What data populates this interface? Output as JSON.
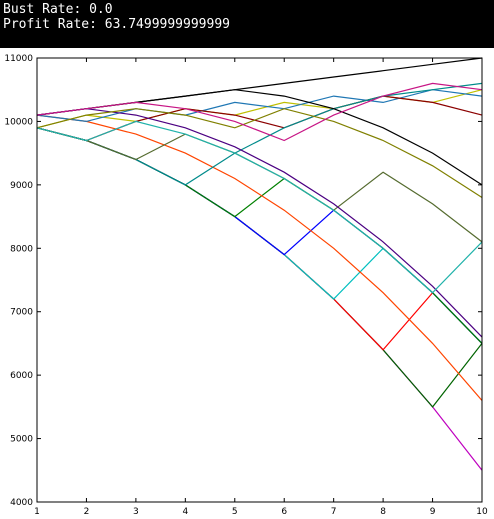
{
  "terminal": {
    "lines": [
      "Bust Rate: 0.0",
      "Profit Rate: 63.7499999999999"
    ]
  },
  "chart_data": {
    "type": "line",
    "x": [
      1,
      2,
      3,
      4,
      5,
      6,
      7,
      8,
      9,
      10
    ],
    "xlim": [
      1,
      10
    ],
    "xticks": [
      1,
      2,
      3,
      4,
      5,
      6,
      7,
      8,
      9,
      10
    ],
    "ylim": [
      4000,
      11000
    ],
    "yticks": [
      4000,
      5000,
      6000,
      7000,
      8000,
      9000,
      10000,
      11000
    ],
    "series": [
      {
        "color": "#bf00bf",
        "values": [
          9900,
          9700,
          9400,
          9000,
          8500,
          7900,
          7200,
          6400,
          5500,
          4500
        ]
      },
      {
        "color": "#000000",
        "values": [
          10100,
          10200,
          10300,
          10400,
          10500,
          10600,
          10700,
          10800,
          10900,
          11000
        ]
      },
      {
        "color": "#006400",
        "values": [
          9900,
          9700,
          9400,
          9000,
          8500,
          7900,
          7200,
          6400,
          5500,
          6500
        ]
      },
      {
        "color": "#ff0000",
        "values": [
          9900,
          9700,
          9400,
          9000,
          8500,
          7900,
          7200,
          6400,
          7300,
          6500
        ]
      },
      {
        "color": "#00bfbf",
        "values": [
          9900,
          9700,
          9400,
          9000,
          8500,
          7900,
          7200,
          8000,
          7300,
          6500
        ]
      },
      {
        "color": "#0000ff",
        "values": [
          9900,
          9700,
          9400,
          9000,
          8500,
          7900,
          8600,
          8000,
          7300,
          6500
        ]
      },
      {
        "color": "#008000",
        "values": [
          9900,
          9700,
          9400,
          9000,
          8500,
          9100,
          8600,
          8000,
          7300,
          6500
        ]
      },
      {
        "color": "#ff4500",
        "values": [
          10100,
          10000,
          9800,
          9500,
          9100,
          8600,
          8000,
          7300,
          6500,
          5600
        ]
      },
      {
        "color": "#bfbf00",
        "values": [
          9900,
          10100,
          10000,
          10200,
          10100,
          10300,
          10200,
          10400,
          10300,
          10500
        ]
      },
      {
        "color": "#1f77b4",
        "values": [
          10100,
          10000,
          10200,
          10100,
          10300,
          10200,
          10400,
          10300,
          10500,
          10400
        ]
      },
      {
        "color": "#8b0000",
        "values": [
          9900,
          9700,
          10000,
          10200,
          10100,
          9900,
          10200,
          10400,
          10300,
          10100
        ]
      },
      {
        "color": "#008b8b",
        "values": [
          9900,
          9700,
          9400,
          9000,
          9500,
          9900,
          10200,
          10400,
          10500,
          10600
        ]
      },
      {
        "color": "#000000",
        "values": [
          10100,
          10200,
          10300,
          10400,
          10500,
          10400,
          10200,
          9900,
          9500,
          9000
        ]
      },
      {
        "color": "#556b2f",
        "values": [
          9900,
          9700,
          9400,
          9800,
          9500,
          9100,
          8600,
          9200,
          8700,
          8100
        ]
      },
      {
        "color": "#4b0082",
        "values": [
          10100,
          10200,
          10100,
          9900,
          9600,
          9200,
          8700,
          8100,
          7400,
          6600
        ]
      },
      {
        "color": "#808000",
        "values": [
          9900,
          10100,
          10200,
          10100,
          9900,
          10200,
          10000,
          9700,
          9300,
          8800
        ]
      },
      {
        "color": "#20b2aa",
        "values": [
          9900,
          9700,
          10000,
          9800,
          9500,
          9100,
          8600,
          8000,
          7300,
          8100
        ]
      },
      {
        "color": "#c71585",
        "values": [
          10100,
          10200,
          10300,
          10200,
          10000,
          9700,
          10100,
          10400,
          10600,
          10500
        ]
      }
    ]
  }
}
